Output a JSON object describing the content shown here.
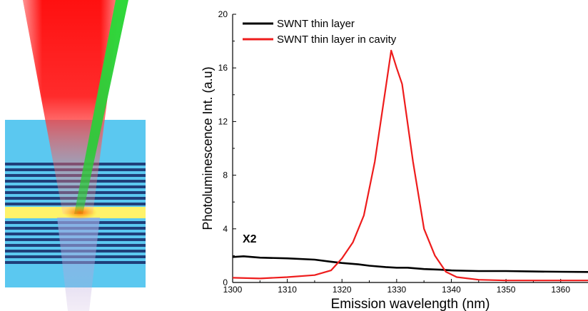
{
  "chart_data": {
    "type": "line",
    "xlabel": "Emission wavelength (nm)",
    "ylabel": "Photoluminescence Int. (a.u)",
    "xlim": [
      1300,
      1365
    ],
    "ylim": [
      0,
      20
    ],
    "xticks": [
      1300,
      1310,
      1320,
      1330,
      1340,
      1350,
      1360
    ],
    "yticks": [
      0,
      4,
      8,
      12,
      16,
      20
    ],
    "grid": false,
    "legend_position": "top-left",
    "annotation": "X2",
    "series": [
      {
        "name": "SWNT thin layer",
        "color": "#000000",
        "x": [
          1300,
          1302,
          1305,
          1310,
          1315,
          1318,
          1320,
          1323,
          1325,
          1328,
          1330,
          1332,
          1335,
          1338,
          1340,
          1345,
          1350,
          1355,
          1360,
          1365
        ],
        "y": [
          1.9,
          1.95,
          1.85,
          1.8,
          1.7,
          1.55,
          1.45,
          1.35,
          1.25,
          1.15,
          1.1,
          1.1,
          1.0,
          0.95,
          0.9,
          0.85,
          0.85,
          0.82,
          0.8,
          0.78
        ]
      },
      {
        "name": "SWNT thin layer in cavity",
        "color": "#ee1c1c",
        "x": [
          1300,
          1305,
          1310,
          1315,
          1318,
          1320,
          1322,
          1324,
          1326,
          1328,
          1329,
          1330,
          1331,
          1333,
          1335,
          1337,
          1339,
          1341,
          1345,
          1350,
          1355,
          1360,
          1365
        ],
        "y": [
          0.35,
          0.3,
          0.4,
          0.55,
          0.9,
          1.8,
          3.0,
          5.0,
          9.0,
          14.5,
          17.3,
          16.0,
          14.8,
          9.0,
          4.0,
          2.0,
          0.8,
          0.4,
          0.2,
          0.15,
          0.15,
          0.15,
          0.15
        ]
      }
    ]
  },
  "colors": {
    "laser_red": "#ff1a1a",
    "laser_green": "#2ecc3a",
    "cavity_blue": "#5bc8f0",
    "mirror_dark": "#1f3f7a",
    "active_layer_yellow": "#fff36a"
  }
}
